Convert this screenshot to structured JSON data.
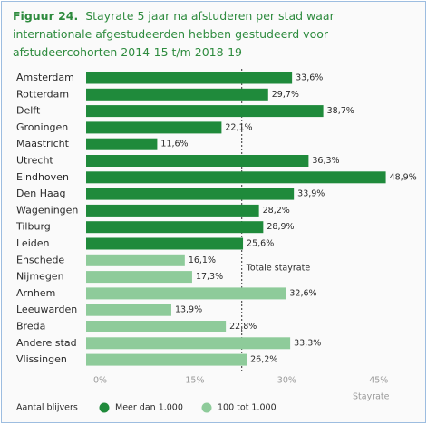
{
  "chart_data": {
    "type": "barh",
    "figure_label": "Figuur 24.",
    "title": "Stayrate 5 jaar na afstuderen per stad waar internationale afgestudeerden hebben gestudeerd voor afstudeercohorten 2014-15 t/m 2018-19",
    "categories": [
      "Amsterdam",
      "Rotterdam",
      "Delft",
      "Groningen",
      "Maastricht",
      "Utrecht",
      "Eindhoven",
      "Den Haag",
      "Wageningen",
      "Tilburg",
      "Leiden",
      "Enschede",
      "Nijmegen",
      "Arnhem",
      "Leeuwarden",
      "Breda",
      "Andere stad",
      "Vlissingen"
    ],
    "series": [
      {
        "name": "Meer dan 1.000",
        "color": "#1f8a3b",
        "values": [
          33.6,
          29.7,
          38.7,
          22.1,
          11.6,
          36.3,
          48.9,
          33.9,
          28.2,
          28.9,
          25.6,
          null,
          null,
          null,
          null,
          null,
          null,
          null
        ],
        "value_labels": [
          "33,6%",
          "29,7%",
          "38,7%",
          "22,1%",
          "11,6%",
          "36,3%",
          "48,9%",
          "33,9%",
          "28,2%",
          "28,9%",
          "25,6%",
          null,
          null,
          null,
          null,
          null,
          null,
          null
        ]
      },
      {
        "name": "100 tot 1.000",
        "color": "#8ecb9a",
        "values": [
          null,
          null,
          null,
          null,
          null,
          null,
          null,
          null,
          null,
          null,
          null,
          16.1,
          17.3,
          32.6,
          13.9,
          22.8,
          33.3,
          26.2
        ],
        "value_labels": [
          null,
          null,
          null,
          null,
          null,
          null,
          null,
          null,
          null,
          null,
          null,
          "16,1%",
          "17,3%",
          "32,6%",
          "13,9%",
          "22,8%",
          "33,3%",
          "26,2%"
        ]
      }
    ],
    "xlim": [
      0,
      50
    ],
    "xticks": [
      {
        "value": 0,
        "label": "0%"
      },
      {
        "value": 15,
        "label": "15%"
      },
      {
        "value": 30,
        "label": "30%"
      },
      {
        "value": 45,
        "label": "45%"
      }
    ],
    "xlabel": "Stayrate",
    "legend_title": "Aantal blijvers",
    "reference_line": {
      "label": "Totale stayrate",
      "value": 25.4
    }
  }
}
